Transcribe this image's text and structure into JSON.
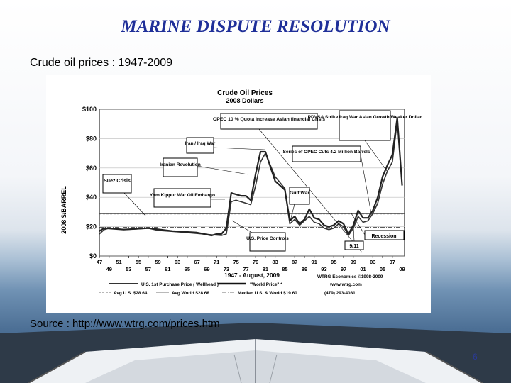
{
  "slide": {
    "title": "MARINE DISPUTE RESOLUTION",
    "subtitle": "Crude oil prices : 1947-2009",
    "source": "Source : http://www.wtrg.com/prices.htm",
    "page_number": "6"
  },
  "colors": {
    "title": "#1f2f99",
    "us_price": "#333333",
    "world_price": "#222222",
    "avg_lines": "#444444",
    "sea": "#4c6f95"
  },
  "chart_data": {
    "type": "line",
    "title": "Crude Oil Prices",
    "subtitle": "2008 Dollars",
    "ylabel": "2008 $/BARREL",
    "xlim": [
      1947,
      2009.5
    ],
    "ylim": [
      0,
      100
    ],
    "y_ticks": [
      "$0",
      "$20",
      "$40",
      "$60",
      "$80",
      "$100"
    ],
    "y_tick_values": [
      0,
      20,
      40,
      60,
      80,
      100
    ],
    "x_ticks_top": [
      "47",
      "51",
      "55",
      "59",
      "63",
      "67",
      "71",
      "75",
      "79",
      "83",
      "87",
      "91",
      "95",
      "99",
      "03",
      "07"
    ],
    "x_ticks_bottom": [
      "49",
      "53",
      "57",
      "61",
      "65",
      "69",
      "73",
      "77",
      "81",
      "85",
      "89",
      "93",
      "97",
      "01",
      "05",
      "09"
    ],
    "period_label": "1947 - August, 2009",
    "publisher": "WTRG Economics ©1998-2009",
    "website": "www.wtrg.com",
    "phone": "(479) 293-4081",
    "series": [
      {
        "name": "U.S. 1st Purchase Price ( Wellhead )",
        "x": [
          1947,
          1948,
          1949,
          1952,
          1955,
          1957,
          1959,
          1965,
          1970,
          1972,
          1973,
          1974,
          1975,
          1976,
          1977,
          1978,
          1979,
          1980,
          1981,
          1982,
          1983,
          1984,
          1985,
          1986,
          1987,
          1988,
          1989,
          1990,
          1991,
          1992,
          1993,
          1994,
          1995,
          1996,
          1997,
          1998,
          1999,
          2000,
          2001,
          2002,
          2003,
          2004,
          2005,
          2006,
          2007,
          2008
        ],
        "y": [
          15,
          18,
          19,
          18,
          18.5,
          19,
          17.5,
          16,
          14.5,
          14,
          15,
          37,
          38,
          37,
          36,
          35,
          48,
          64,
          70,
          62,
          54,
          50,
          46,
          22,
          25,
          21,
          24,
          27,
          23,
          22,
          19,
          18,
          19,
          22,
          20,
          14,
          19,
          27,
          23,
          24,
          29,
          36,
          49,
          58,
          64,
          92
        ]
      },
      {
        "name": "\"World Price\" *",
        "x": [
          1947,
          1948,
          1952,
          1957,
          1962,
          1967,
          1970,
          1971,
          1972,
          1973,
          1974,
          1975,
          1976,
          1977,
          1978,
          1979,
          1980,
          1981,
          1982,
          1983,
          1984,
          1985,
          1986,
          1987,
          1988,
          1989,
          1990,
          1991,
          1992,
          1993,
          1994,
          1995,
          1996,
          1997,
          1998,
          1999,
          2000,
          2001,
          2002,
          2003,
          2004,
          2005,
          2006,
          2007,
          2008,
          2009
        ],
        "y": [
          17,
          19,
          18,
          19,
          17,
          16,
          14,
          15,
          15,
          19,
          43,
          42,
          41,
          41,
          38,
          56,
          71,
          71,
          61,
          51,
          48,
          45,
          24,
          27,
          22,
          25,
          32,
          26,
          25,
          21,
          20,
          21,
          24,
          22,
          15,
          21,
          31,
          26,
          26,
          31,
          40,
          54,
          62,
          69,
          94,
          48
        ]
      },
      {
        "name": "Avg U.S. $28.64",
        "value": 28.64
      },
      {
        "name": "Avg World $28.68",
        "value": 28.68
      },
      {
        "name": "Median U.S. & World $19.60",
        "value": 19.6
      }
    ],
    "annotations": [
      "OPEC 10 % Quota Increase Asian financial Crisis",
      "PDVSA Strike Iraq War Asian Growth Weaker Dollar",
      "Iran / Iraq War",
      "Series of OPEC Cuts 4.2 Million Barrels",
      "Iranian Revolution",
      "Suez Crisis",
      "Yom Kippur War Oil Embargo",
      "Gulf War",
      "U.S. Price Controls",
      "Recession",
      "9/11"
    ]
  }
}
